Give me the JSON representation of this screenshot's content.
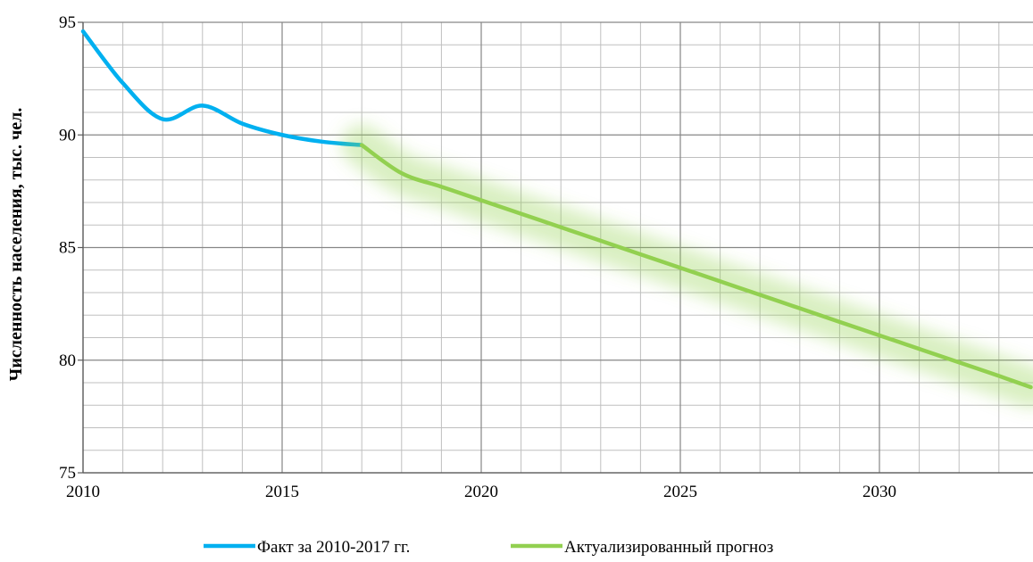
{
  "chart_data": {
    "type": "line",
    "ylabel": "Численность населения, тыс. чел.",
    "xlim": [
      2010,
      2033.8
    ],
    "ylim": [
      75,
      95
    ],
    "x_ticks": [
      "2010",
      "2015",
      "2020",
      "2025",
      "2030"
    ],
    "y_ticks": [
      "75",
      "80",
      "85",
      "90",
      "95"
    ],
    "grid": true,
    "legend_position": "bottom",
    "series": [
      {
        "name": "Факт за 2010-2017 гг.",
        "color": "#00b0f0",
        "x": [
          2010,
          2011,
          2012,
          2013,
          2014,
          2015,
          2016,
          2017
        ],
        "y": [
          94.6,
          92.3,
          90.7,
          91.3,
          90.5,
          90.0,
          89.7,
          89.55
        ]
      },
      {
        "name": "Актуализированный прогноз",
        "color": "#92d050",
        "x": [
          2017,
          2018,
          2019,
          2020,
          2021,
          2022,
          2023,
          2024,
          2025,
          2026,
          2027,
          2028,
          2029,
          2030,
          2031,
          2032,
          2033,
          2033.8
        ],
        "y": [
          89.55,
          88.3,
          87.7,
          87.1,
          86.5,
          85.9,
          85.3,
          84.7,
          84.1,
          83.5,
          82.9,
          82.3,
          81.7,
          81.1,
          80.5,
          79.9,
          79.3,
          78.8
        ]
      }
    ]
  }
}
